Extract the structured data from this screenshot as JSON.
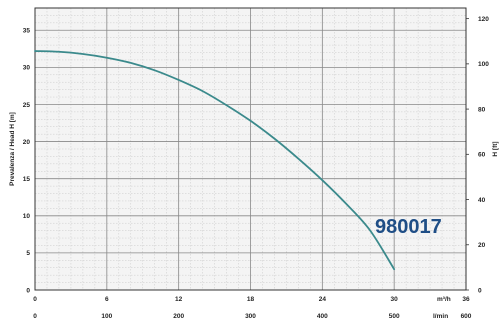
{
  "chart_data": {
    "type": "line",
    "title": "",
    "ylabel_left": "Prevalenza / Head H [m]",
    "ylabel_right": "H [ft]",
    "xlabel_primary": "m³/h",
    "xlabel_secondary": "l/min",
    "xlim": [
      0,
      36
    ],
    "ylim": [
      0,
      38
    ],
    "xlim_secondary": [
      0,
      600
    ],
    "ylim_right": [
      0,
      124.7
    ],
    "x_ticks": [
      "0",
      "6",
      "12",
      "18",
      "24",
      "30",
      "36"
    ],
    "x_ticks_secondary": [
      "0",
      "100",
      "200",
      "300",
      "400",
      "500",
      "600"
    ],
    "y_ticks_left": [
      "0",
      "5",
      "10",
      "15",
      "20",
      "25",
      "30",
      "35"
    ],
    "y_ticks_right": [
      "0",
      "20",
      "40",
      "60",
      "80",
      "100",
      "120"
    ],
    "grid": true,
    "annotation": "980017",
    "series": [
      {
        "name": "",
        "x": [
          0,
          2,
          4,
          6,
          8,
          10,
          12,
          14,
          16,
          18,
          20,
          22,
          24,
          26,
          28,
          30
        ],
        "y": [
          32.2,
          32.1,
          31.8,
          31.3,
          30.6,
          29.6,
          28.3,
          26.8,
          24.9,
          22.8,
          20.4,
          17.7,
          14.8,
          11.6,
          8.0,
          2.8
        ]
      }
    ],
    "colors": {
      "curve": "#3b8a8c",
      "annotation": "#1f4e86",
      "grid_major": "#888888",
      "grid_minor": "#c9c9c9",
      "plot_background": "#f4f4f4"
    }
  }
}
